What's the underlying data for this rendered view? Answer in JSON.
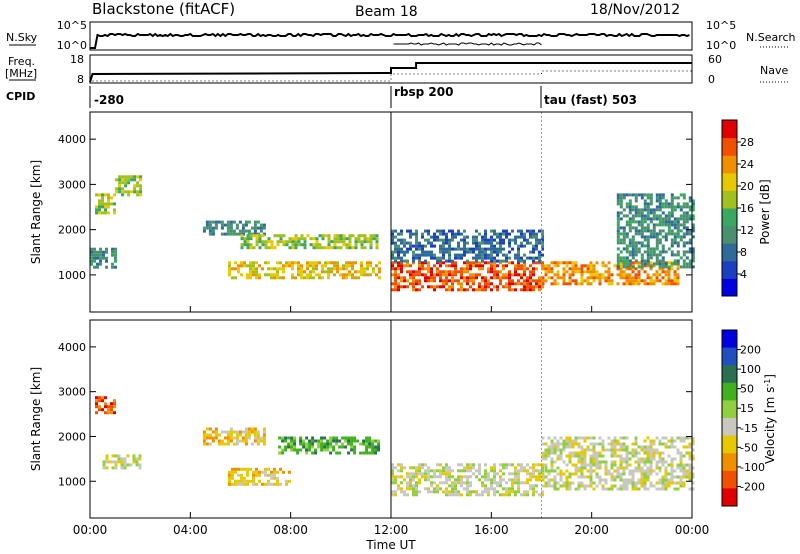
{
  "header": {
    "station": "Blackstone (fitACF)",
    "beam": "Beam 18",
    "date": "18/Nov/2012"
  },
  "panels": {
    "noise": {
      "left_label": "N.Sky",
      "right_label": "N.Search",
      "left_ticks": [
        "10^5",
        "10^0"
      ],
      "right_ticks": [
        "10^5",
        "10^0"
      ]
    },
    "freq": {
      "left_label_line1": "Freq.",
      "left_label_line2": "[MHz]",
      "right_label": "Nave",
      "left_ticks": [
        "18",
        "8"
      ],
      "right_ticks": [
        "60",
        "0"
      ]
    },
    "cpid": {
      "label": "CPID",
      "segments": [
        {
          "label": "-280",
          "start_hour": 0
        },
        {
          "label": "rbsp 200",
          "start_hour": 12
        },
        {
          "label": "tau (fast) 503",
          "start_hour": 18
        }
      ]
    }
  },
  "colorbars": {
    "power": {
      "label": "Power [dB]",
      "ticks": [
        "28",
        "24",
        "20",
        "16",
        "12",
        "8",
        "4"
      ],
      "colors": [
        "#0000e0",
        "#1c3fc0",
        "#2e6a9a",
        "#4a9070",
        "#3aa860",
        "#a0c020",
        "#e8c800",
        "#f09000",
        "#f05000",
        "#e00000"
      ]
    },
    "velocity": {
      "label": "Velocity [m s",
      "label_sup": "-1",
      "label_close": "]",
      "ticks": [
        "200",
        "100",
        "50",
        "15",
        "-15",
        "-50",
        "-100",
        "-200"
      ],
      "colors": [
        "#0000e0",
        "#2050c0",
        "#2a7050",
        "#40b020",
        "#90d040",
        "#c8c8c0",
        "#e8c800",
        "#f09000",
        "#f05000",
        "#e00000"
      ]
    }
  },
  "chart_data": {
    "type": "heatmap",
    "title": "Blackstone (fitACF)",
    "xlabel": "Time UT",
    "x_ticks": [
      "00:00",
      "04:00",
      "08:00",
      "12:00",
      "16:00",
      "20:00",
      "00:00"
    ],
    "xlim_hours": [
      0,
      24
    ],
    "ylabel": "Slant Range [km]",
    "y_ticks": [
      1000,
      2000,
      3000,
      4000
    ],
    "ylim_km": [
      180,
      4600
    ],
    "power_echo_bands": [
      {
        "t": [
          0.0,
          1.0
        ],
        "range_km": [
          1200,
          1600
        ],
        "power_db": 12
      },
      {
        "t": [
          0.2,
          1.0
        ],
        "range_km": [
          2400,
          2800
        ],
        "power_db": 16
      },
      {
        "t": [
          1.0,
          2.0
        ],
        "range_km": [
          2800,
          3200
        ],
        "power_db": 16
      },
      {
        "t": [
          4.5,
          7.0
        ],
        "range_km": [
          1900,
          2200
        ],
        "power_db": 12
      },
      {
        "t": [
          5.5,
          11.5
        ],
        "range_km": [
          950,
          1300
        ],
        "power_db": 20
      },
      {
        "t": [
          6.0,
          11.5
        ],
        "range_km": [
          1600,
          1900
        ],
        "power_db": 16
      },
      {
        "t": [
          12.0,
          18.0
        ],
        "range_km": [
          700,
          1300
        ],
        "power_db": 26
      },
      {
        "t": [
          12.0,
          18.0
        ],
        "range_km": [
          1300,
          2000
        ],
        "power_db": 8
      },
      {
        "t": [
          18.0,
          23.5
        ],
        "range_km": [
          800,
          1300
        ],
        "power_db": 24
      },
      {
        "t": [
          21.0,
          24.0
        ],
        "range_km": [
          1200,
          2800
        ],
        "power_db": 12
      }
    ],
    "velocity_echo_bands": [
      {
        "t": [
          0.2,
          1.0
        ],
        "range_km": [
          2500,
          2900
        ],
        "velocity": -150
      },
      {
        "t": [
          0.5,
          2.0
        ],
        "range_km": [
          1300,
          1600
        ],
        "velocity": 0
      },
      {
        "t": [
          4.5,
          7.0
        ],
        "range_km": [
          1800,
          2200
        ],
        "velocity": -50
      },
      {
        "t": [
          5.5,
          8.0
        ],
        "range_km": [
          900,
          1300
        ],
        "velocity": -50
      },
      {
        "t": [
          7.5,
          11.5
        ],
        "range_km": [
          1600,
          2000
        ],
        "velocity": 60
      },
      {
        "t": [
          12.0,
          18.0
        ],
        "range_km": [
          700,
          1400
        ],
        "velocity": 0
      },
      {
        "t": [
          18.0,
          24.0
        ],
        "range_km": [
          800,
          2000
        ],
        "velocity": 0
      }
    ]
  }
}
